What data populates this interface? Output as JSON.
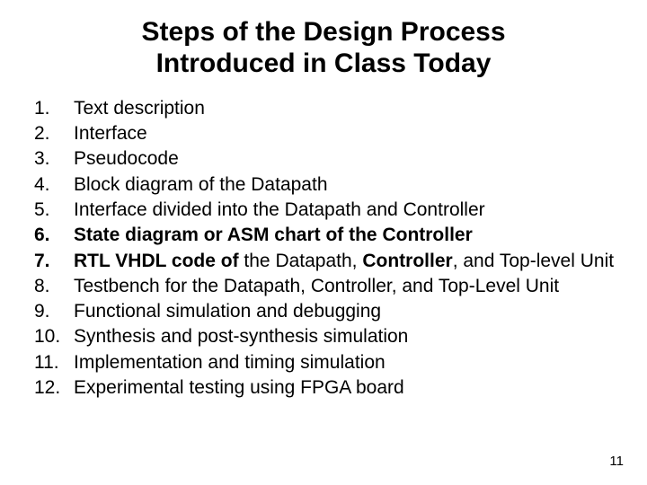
{
  "title_line1": "Steps of the Design Process",
  "title_line2": "Introduced in Class Today",
  "page_number": "11",
  "items": [
    {
      "n": "1.",
      "n_bold": false,
      "html": "Text description"
    },
    {
      "n": "2.",
      "n_bold": false,
      "html": "Interface"
    },
    {
      "n": "3.",
      "n_bold": false,
      "html": "Pseudocode"
    },
    {
      "n": "4.",
      "n_bold": false,
      "html": "Block diagram of the Datapath"
    },
    {
      "n": "5.",
      "n_bold": false,
      "html": "Interface divided into the Datapath and Controller"
    },
    {
      "n": "6.",
      "n_bold": true,
      "html": "<b>State diagram or ASM chart of the Controller</b>"
    },
    {
      "n": "7.",
      "n_bold": true,
      "html": "<b>RTL VHDL code of</b> the Datapath, <b>Controller</b>, and  Top-level Unit"
    },
    {
      "n": "8.",
      "n_bold": false,
      "html": "Testbench for the Datapath, Controller, and Top-Level Unit"
    },
    {
      "n": "9.",
      "n_bold": false,
      "html": "Functional simulation and debugging"
    },
    {
      "n": "10.",
      "n_bold": false,
      "html": "Synthesis and post-synthesis simulation"
    },
    {
      "n": "11.",
      "n_bold": false,
      "html": "Implementation and timing simulation"
    },
    {
      "n": "12.",
      "n_bold": false,
      "html": "Experimental testing using FPGA board"
    }
  ]
}
